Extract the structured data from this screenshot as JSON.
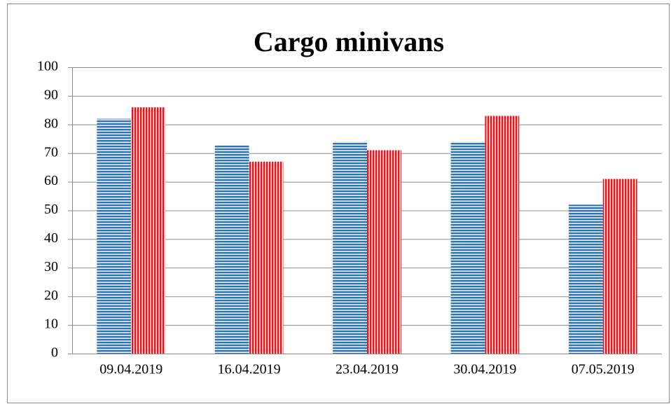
{
  "chart_data": {
    "type": "bar",
    "title": "Cargo minivans",
    "categories": [
      "09.04.2019",
      "16.04.2019",
      "23.04.2019",
      "30.04.2019",
      "07.05.2019"
    ],
    "series": [
      {
        "color": "#2e75b6",
        "hatch": "horizontal",
        "values": [
          82,
          73,
          74,
          74,
          52
        ]
      },
      {
        "color": "#e8141c",
        "hatch": "vertical",
        "values": [
          86,
          67,
          71,
          83,
          61
        ]
      }
    ],
    "ylim": [
      0,
      100
    ],
    "yticks": [
      0,
      10,
      20,
      30,
      40,
      50,
      60,
      70,
      80,
      90,
      100
    ],
    "grid": true
  }
}
